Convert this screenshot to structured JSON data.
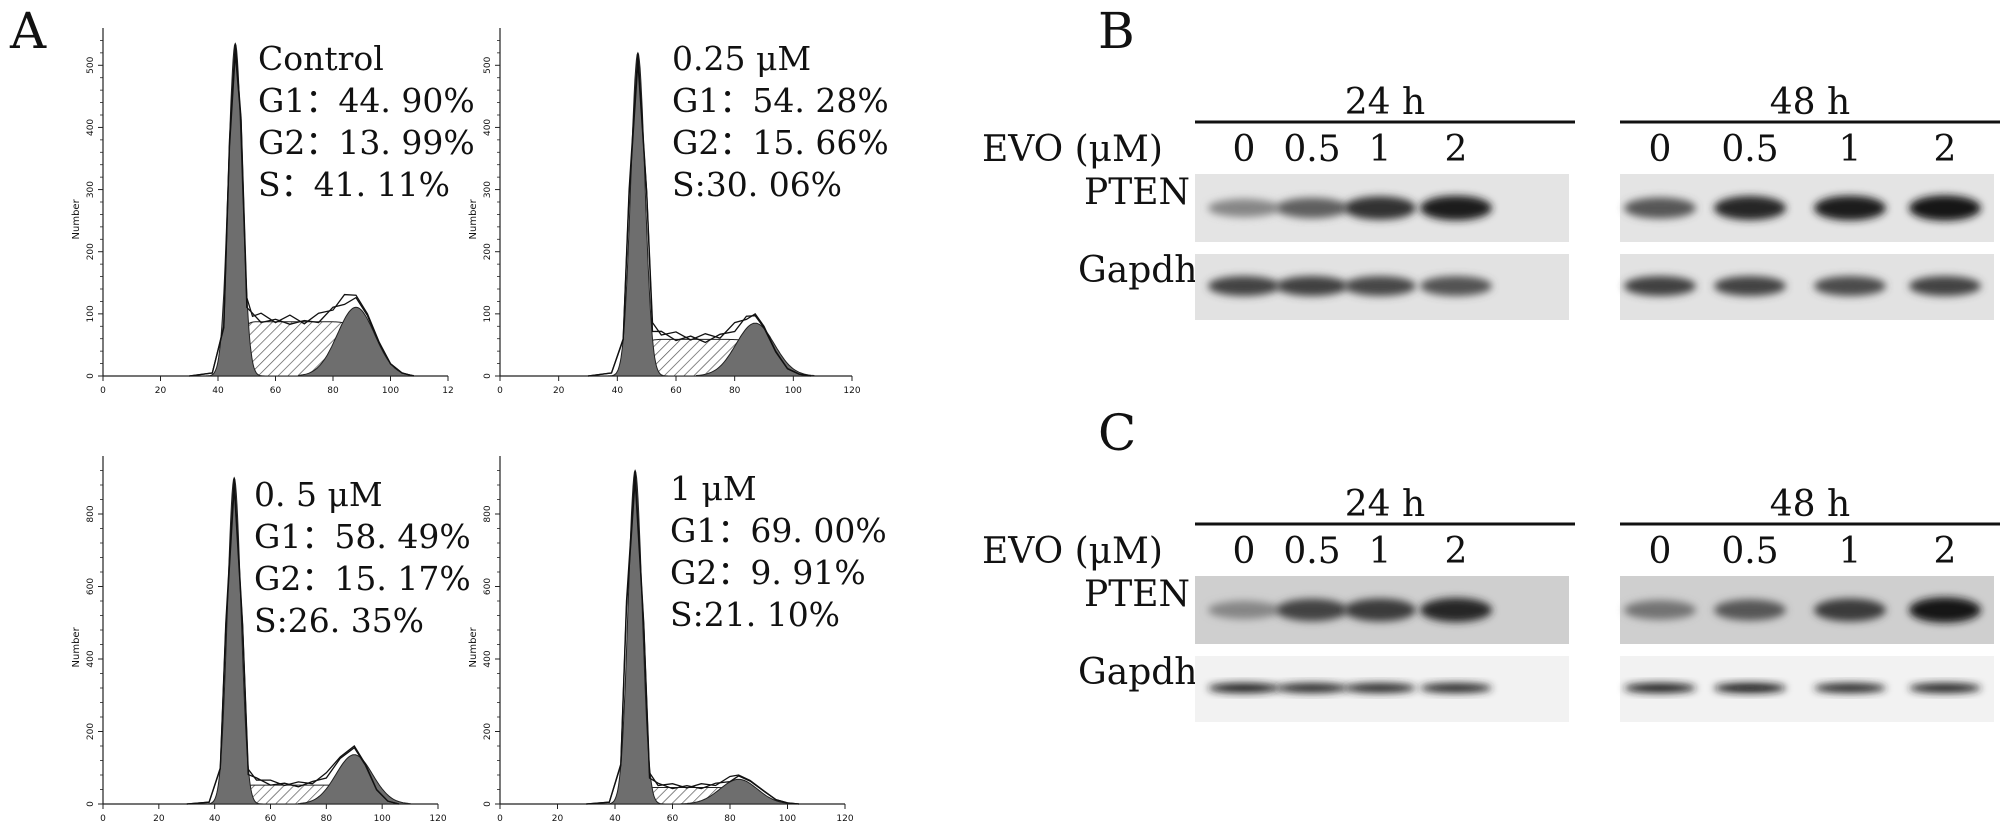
{
  "panels": {
    "A": "A",
    "B": "B",
    "C": "C"
  },
  "chart_data": [
    {
      "type": "area",
      "title": "Control",
      "stats": [
        "G1：44. 90%",
        "G2：13. 99%",
        "S：41. 11%"
      ],
      "ylabel": "Number",
      "xlim": [
        0,
        120
      ],
      "xticks": [
        "0",
        "20",
        "40",
        "60",
        "80",
        "100",
        "12"
      ],
      "yticks": [
        "0",
        "100",
        "200",
        "300",
        "400",
        "500"
      ],
      "ylim": [
        0,
        560
      ],
      "g1_peak": {
        "x": 46,
        "y": 535
      },
      "g2_peak": {
        "x": 88,
        "y": 130
      },
      "series": [
        {
          "x": [
            30,
            38,
            42,
            44,
            46,
            48,
            50,
            52,
            55,
            60,
            65,
            70,
            75,
            80,
            84,
            88,
            92,
            96,
            100,
            104,
            108
          ],
          "values": [
            0,
            5,
            80,
            380,
            535,
            420,
            120,
            100,
            95,
            90,
            92,
            88,
            95,
            110,
            125,
            130,
            100,
            55,
            20,
            5,
            0
          ]
        }
      ]
    },
    {
      "type": "area",
      "title": "0.25 μM",
      "stats": [
        "G1：54. 28%",
        "G2：15. 66%",
        "S:30. 06%"
      ],
      "ylabel": "Number",
      "xlim": [
        0,
        120
      ],
      "xticks": [
        "0",
        "20",
        "40",
        "60",
        "80",
        "100",
        "120"
      ],
      "yticks": [
        "0",
        "100",
        "200",
        "300",
        "400",
        "500"
      ],
      "ylim": [
        0,
        560
      ],
      "g1_peak": {
        "x": 47,
        "y": 520
      },
      "g2_peak": {
        "x": 87,
        "y": 100
      },
      "series": [
        {
          "x": [
            30,
            38,
            42,
            44,
            47,
            50,
            52,
            55,
            60,
            65,
            70,
            75,
            80,
            84,
            87,
            90,
            94,
            98,
            102,
            106
          ],
          "values": [
            0,
            5,
            60,
            300,
            520,
            300,
            80,
            70,
            65,
            62,
            62,
            65,
            80,
            95,
            100,
            80,
            40,
            12,
            3,
            0
          ]
        }
      ]
    },
    {
      "type": "area",
      "title": "0. 5 μM",
      "stats": [
        "G1：58. 49%",
        "G2：15. 17%",
        "S:26. 35%"
      ],
      "ylabel": "Number",
      "xlim": [
        0,
        120
      ],
      "xticks": [
        "0",
        "20",
        "40",
        "60",
        "80",
        "100",
        "120"
      ],
      "yticks": [
        "0",
        "200",
        "400",
        "600",
        "800"
      ],
      "ylim": [
        0,
        960
      ],
      "g1_peak": {
        "x": 47,
        "y": 900
      },
      "g2_peak": {
        "x": 90,
        "y": 160
      },
      "series": [
        {
          "x": [
            30,
            38,
            42,
            44,
            47,
            50,
            52,
            55,
            60,
            65,
            70,
            75,
            80,
            85,
            90,
            94,
            98,
            102,
            106
          ],
          "values": [
            0,
            5,
            100,
            500,
            900,
            500,
            90,
            70,
            60,
            55,
            55,
            60,
            80,
            130,
            160,
            110,
            40,
            8,
            0
          ]
        }
      ]
    },
    {
      "type": "area",
      "title": "1 μM",
      "stats": [
        "G1：69. 00%",
        "G2：9. 91%",
        "S:21. 10%"
      ],
      "ylabel": "Number",
      "xlim": [
        0,
        120
      ],
      "xticks": [
        "0",
        "20",
        "40",
        "60",
        "80",
        "100",
        "120"
      ],
      "yticks": [
        "0",
        "200",
        "400",
        "600",
        "800"
      ],
      "ylim": [
        0,
        960
      ],
      "g1_peak": {
        "x": 47,
        "y": 920
      },
      "g2_peak": {
        "x": 83,
        "y": 80
      },
      "series": [
        {
          "x": [
            30,
            38,
            42,
            44,
            47,
            50,
            52,
            55,
            60,
            65,
            70,
            75,
            80,
            83,
            87,
            92,
            96,
            100,
            104
          ],
          "values": [
            0,
            5,
            110,
            560,
            920,
            500,
            80,
            55,
            50,
            48,
            50,
            55,
            70,
            80,
            65,
            35,
            12,
            3,
            0
          ]
        }
      ]
    }
  ],
  "blots": {
    "B": {
      "groups": [
        {
          "header": "24 h",
          "lanes": [
            "0",
            "0.5",
            "1",
            "2"
          ],
          "pten": [
            0.35,
            0.55,
            0.8,
            0.9
          ],
          "gapdh": [
            0.7,
            0.72,
            0.68,
            0.62
          ]
        },
        {
          "header": "48 h",
          "lanes": [
            "0",
            "0.5",
            "1",
            "2"
          ],
          "pten": [
            0.6,
            0.85,
            0.9,
            0.95
          ],
          "gapdh": [
            0.72,
            0.7,
            0.66,
            0.7
          ]
        }
      ],
      "evo_label": "EVO (μM)",
      "row1": "PTEN",
      "row2": "Gapdh"
    },
    "C": {
      "groups": [
        {
          "header": "24 h",
          "lanes": [
            "0",
            "0.5",
            "1",
            "2"
          ],
          "pten": [
            0.35,
            0.7,
            0.75,
            0.85
          ],
          "gapdh": [
            0.9,
            0.85,
            0.85,
            0.85
          ]
        },
        {
          "header": "48 h",
          "lanes": [
            "0",
            "0.5",
            "1",
            "2"
          ],
          "pten": [
            0.45,
            0.6,
            0.75,
            0.95
          ],
          "gapdh": [
            0.9,
            0.95,
            0.85,
            0.88
          ]
        }
      ],
      "evo_label": "EVO (μM)",
      "row1": "PTEN",
      "row2": "Gapdh"
    }
  }
}
